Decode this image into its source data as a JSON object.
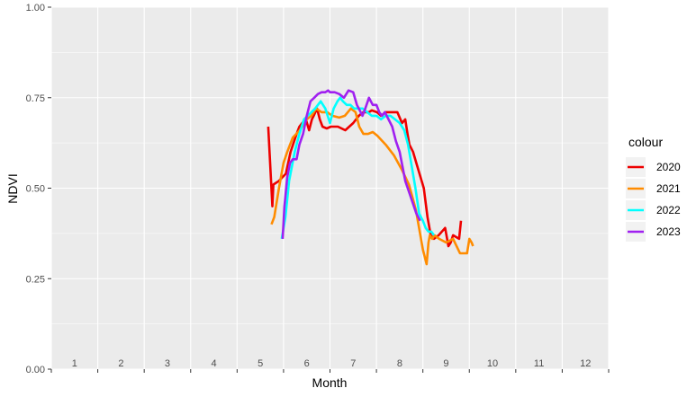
{
  "chart_data": {
    "type": "line",
    "xlabel": "Month",
    "ylabel": "NDVI",
    "xlim": [
      0,
      12
    ],
    "ylim": [
      0,
      1
    ],
    "grid": true,
    "legend_position": "right",
    "legend_title": "colour",
    "x_ticks": [
      "1",
      "2",
      "3",
      "4",
      "5",
      "6",
      "7",
      "8",
      "9",
      "10",
      "11",
      "12"
    ],
    "y_ticks": [
      "0.00",
      "0.25",
      "0.50",
      "0.75",
      "1.00"
    ],
    "y_tick_values": [
      0,
      0.25,
      0.5,
      0.75,
      1
    ],
    "background_color": "#EBEBEB",
    "series": [
      {
        "name": "2020",
        "color": "#EE0000",
        "x": [
          4.67,
          4.76,
          4.78,
          4.9,
          5.05,
          5.15,
          5.28,
          5.34,
          5.4,
          5.48,
          5.55,
          5.61,
          5.65,
          5.72,
          5.78,
          5.84,
          5.93,
          6.02,
          6.17,
          6.33,
          6.5,
          6.62,
          6.72,
          6.84,
          6.9,
          7.01,
          7.1,
          7.2,
          7.33,
          7.45,
          7.55,
          7.62,
          7.67,
          7.71,
          7.79,
          7.88,
          8.02,
          8.1,
          8.17,
          8.24,
          8.34,
          8.48,
          8.55,
          8.6,
          8.65,
          8.78,
          8.82
        ],
        "y": [
          0.67,
          0.45,
          0.51,
          0.52,
          0.54,
          0.6,
          0.65,
          0.67,
          0.68,
          0.69,
          0.66,
          0.69,
          0.7,
          0.72,
          0.69,
          0.67,
          0.665,
          0.67,
          0.67,
          0.66,
          0.68,
          0.7,
          0.71,
          0.71,
          0.715,
          0.71,
          0.7,
          0.71,
          0.71,
          0.71,
          0.68,
          0.69,
          0.65,
          0.62,
          0.6,
          0.56,
          0.5,
          0.42,
          0.37,
          0.36,
          0.37,
          0.39,
          0.34,
          0.35,
          0.37,
          0.36,
          0.41
        ]
      },
      {
        "name": "2021",
        "color": "#FF8C00",
        "x": [
          4.74,
          4.8,
          4.9,
          5.0,
          5.08,
          5.2,
          5.35,
          5.5,
          5.6,
          5.7,
          5.82,
          5.94,
          6.05,
          6.2,
          6.32,
          6.45,
          6.55,
          6.63,
          6.72,
          6.82,
          6.92,
          7.02,
          7.2,
          7.38,
          7.55,
          7.7,
          7.85,
          8.0,
          8.08,
          8.12,
          8.15,
          8.2,
          8.25,
          8.35,
          8.5,
          8.65,
          8.8,
          8.95,
          9.0,
          9.05,
          9.08
        ],
        "y": [
          0.4,
          0.42,
          0.5,
          0.57,
          0.6,
          0.64,
          0.66,
          0.69,
          0.7,
          0.72,
          0.71,
          0.71,
          0.7,
          0.695,
          0.7,
          0.72,
          0.71,
          0.67,
          0.65,
          0.65,
          0.655,
          0.645,
          0.62,
          0.59,
          0.55,
          0.51,
          0.44,
          0.33,
          0.29,
          0.35,
          0.37,
          0.36,
          0.37,
          0.36,
          0.35,
          0.36,
          0.32,
          0.32,
          0.36,
          0.35,
          0.34
        ]
      },
      {
        "name": "2022",
        "color": "#00FFFF",
        "x": [
          4.96,
          5.04,
          5.12,
          5.24,
          5.34,
          5.44,
          5.52,
          5.6,
          5.68,
          5.8,
          5.9,
          6.0,
          6.08,
          6.16,
          6.22,
          6.28,
          6.36,
          6.44,
          6.52,
          6.6,
          6.7,
          6.8,
          6.9,
          7.0,
          7.1,
          7.2,
          7.3,
          7.4,
          7.5,
          7.6,
          7.68,
          7.76,
          7.84,
          7.92,
          8.0,
          8.06,
          8.12,
          8.18,
          8.24
        ],
        "y": [
          0.36,
          0.42,
          0.52,
          0.6,
          0.65,
          0.69,
          0.7,
          0.71,
          0.72,
          0.74,
          0.72,
          0.68,
          0.72,
          0.74,
          0.75,
          0.74,
          0.73,
          0.73,
          0.72,
          0.72,
          0.72,
          0.71,
          0.7,
          0.7,
          0.69,
          0.7,
          0.7,
          0.69,
          0.68,
          0.66,
          0.62,
          0.56,
          0.5,
          0.43,
          0.41,
          0.39,
          0.38,
          0.38,
          0.37
        ]
      },
      {
        "name": "2023",
        "color": "#A020F0",
        "x": [
          4.98,
          5.02,
          5.08,
          5.14,
          5.2,
          5.28,
          5.34,
          5.42,
          5.5,
          5.58,
          5.66,
          5.74,
          5.82,
          5.9,
          5.96,
          6.0,
          6.1,
          6.2,
          6.3,
          6.4,
          6.5,
          6.58,
          6.62,
          6.7,
          6.76,
          6.84,
          6.92,
          7.0,
          7.06,
          7.12,
          7.18,
          7.26,
          7.34,
          7.42,
          7.5,
          7.56,
          7.62,
          7.7,
          7.78,
          7.86,
          7.94
        ],
        "y": [
          0.36,
          0.45,
          0.53,
          0.57,
          0.58,
          0.58,
          0.62,
          0.65,
          0.7,
          0.74,
          0.75,
          0.76,
          0.765,
          0.765,
          0.77,
          0.765,
          0.765,
          0.76,
          0.75,
          0.77,
          0.765,
          0.73,
          0.72,
          0.7,
          0.72,
          0.75,
          0.73,
          0.73,
          0.71,
          0.7,
          0.71,
          0.69,
          0.67,
          0.63,
          0.6,
          0.56,
          0.52,
          0.49,
          0.46,
          0.43,
          0.41
        ]
      }
    ]
  }
}
